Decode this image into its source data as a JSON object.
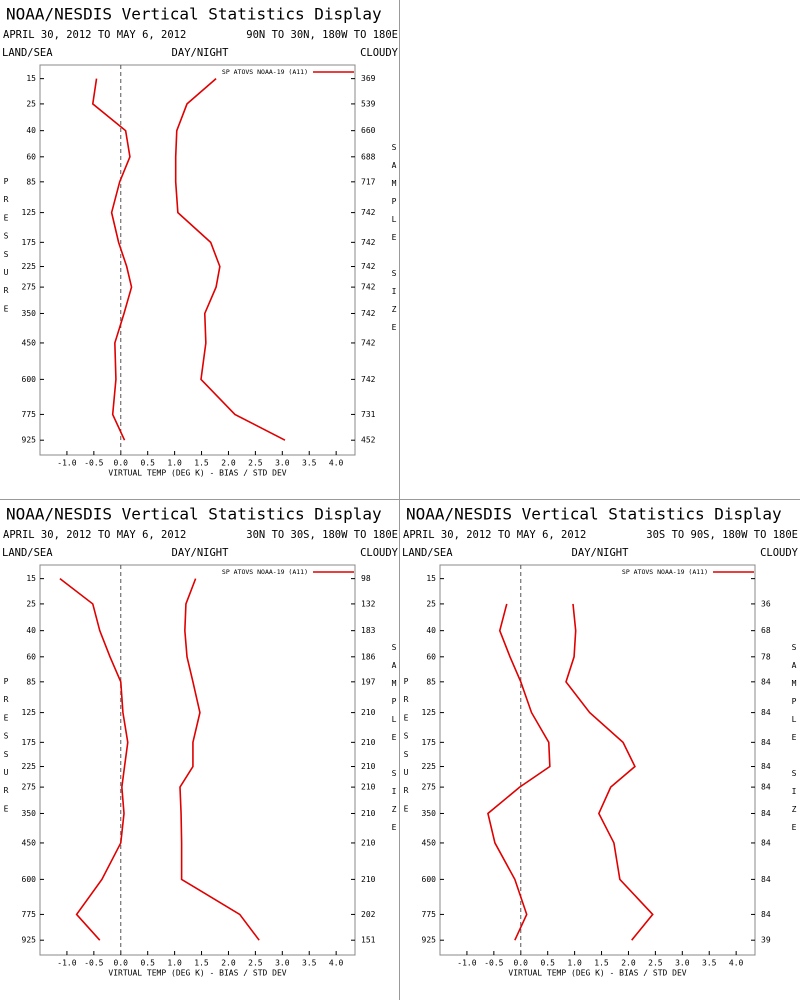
{
  "chart_data": [
    {
      "type": "line",
      "title": "NOAA/NESDIS Vertical Statistics Display",
      "subtitle": "APRIL 30, 2012 TO MAY 6, 2012",
      "region": "90N TO 30N, 180W TO 180E",
      "left_label": "LAND/SEA",
      "center_label": "DAY/NIGHT",
      "right_label": "CLOUDY",
      "xlabel": "VIRTUAL TEMP (DEG K) - BIAS / STD DEV",
      "ylabel": "PRESSURE",
      "y2label": "SAMPLE SIZE",
      "y": [
        15,
        25,
        40,
        60,
        85,
        125,
        175,
        225,
        275,
        350,
        450,
        600,
        775,
        925
      ],
      "series": [
        {
          "name": "SP ATOVS NOAA-19 (A11)",
          "color": "#e00000",
          "values": [
            -0.45,
            -0.52,
            0.09,
            0.17,
            -0.02,
            -0.17,
            -0.04,
            0.11,
            0.2,
            0.06,
            -0.11,
            -0.09,
            -0.15,
            0.07
          ],
          "std_dev": [
            1.77,
            1.23,
            1.04,
            1.02,
            1.02,
            1.06,
            1.67,
            1.84,
            1.77,
            1.56,
            1.58,
            1.49,
            2.12,
            3.05
          ]
        }
      ],
      "sample_size": [
        369,
        539,
        660,
        688,
        717,
        742,
        742,
        742,
        742,
        742,
        742,
        742,
        731,
        452
      ],
      "xlim": [
        -1.5,
        4.35
      ],
      "xticks": [
        {
          "value": -1,
          "label": "-1.0"
        },
        -0.5,
        {
          "value": 0,
          "label": "0.0"
        },
        0.5,
        {
          "value": 1,
          "label": "1.0"
        },
        1.5,
        {
          "value": 2,
          "label": "2.0"
        },
        2.5,
        {
          "value": 3,
          "label": "3.0"
        },
        3.5,
        {
          "value": 4,
          "label": "4.0"
        }
      ],
      "ylim": [
        1020,
        11
      ],
      "yticks": [
        15,
        25,
        40,
        60,
        85,
        125,
        175,
        225,
        275,
        350,
        450,
        600,
        775,
        925
      ],
      "zero_line": true,
      "legend": "upper right"
    },
    {
      "type": "line",
      "title": "NOAA/NESDIS Vertical Statistics Display",
      "subtitle": "APRIL 30, 2012 TO MAY 6, 2012",
      "region": "30N TO 30S, 180W TO 180E",
      "left_label": "LAND/SEA",
      "center_label": "DAY/NIGHT",
      "right_label": "CLOUDY",
      "xlabel": "VIRTUAL TEMP (DEG K) - BIAS / STD DEV",
      "ylabel": "PRESSURE",
      "y2label": "SAMPLE SIZE",
      "y": [
        15,
        25,
        40,
        60,
        85,
        125,
        175,
        225,
        275,
        350,
        450,
        600,
        775,
        925
      ],
      "series": [
        {
          "name": "SP ATOVS NOAA-19 (A11)",
          "color": "#e00000",
          "values": [
            -1.13,
            -0.52,
            -0.39,
            -0.2,
            0.0,
            0.04,
            0.13,
            0.07,
            0.02,
            0.06,
            0.0,
            -0.35,
            -0.82,
            -0.39
          ],
          "std_dev": [
            1.39,
            1.21,
            1.19,
            1.23,
            1.34,
            1.47,
            1.34,
            1.34,
            1.1,
            1.12,
            1.13,
            1.13,
            2.21,
            2.57
          ]
        }
      ],
      "sample_size": [
        98,
        132,
        183,
        186,
        197,
        210,
        210,
        210,
        210,
        210,
        210,
        210,
        202,
        151
      ],
      "xlim": [
        -1.5,
        4.35
      ],
      "xticks": [
        {
          "value": -1,
          "label": "-1.0"
        },
        -0.5,
        {
          "value": 0,
          "label": "0.0"
        },
        0.5,
        {
          "value": 1,
          "label": "1.0"
        },
        1.5,
        {
          "value": 2,
          "label": "2.0"
        },
        2.5,
        {
          "value": 3,
          "label": "3.0"
        },
        3.5,
        {
          "value": 4,
          "label": "4.0"
        }
      ],
      "ylim": [
        1020,
        11
      ],
      "yticks": [
        15,
        25,
        40,
        60,
        85,
        125,
        175,
        225,
        275,
        350,
        450,
        600,
        775,
        925
      ],
      "zero_line": true,
      "legend": "upper right"
    },
    {
      "type": "line",
      "title": "NOAA/NESDIS Vertical Statistics Display",
      "subtitle": "APRIL 30, 2012 TO MAY 6, 2012",
      "region": "30S TO 90S, 180W TO 180E",
      "left_label": "LAND/SEA",
      "center_label": "DAY/NIGHT",
      "right_label": "CLOUDY",
      "xlabel": "VIRTUAL TEMP (DEG K) - BIAS / STD DEV",
      "ylabel": "PRESSURE",
      "y2label": "SAMPLE SIZE",
      "y": [
        15,
        25,
        40,
        60,
        85,
        125,
        175,
        225,
        275,
        350,
        450,
        600,
        775,
        925
      ],
      "series": [
        {
          "name": "SP ATOVS NOAA-19 (A11)",
          "color": "#e00000",
          "values": [
            null,
            -0.26,
            -0.39,
            -0.2,
            0.0,
            0.2,
            0.52,
            0.54,
            -0.02,
            -0.61,
            -0.48,
            -0.11,
            0.11,
            -0.11
          ],
          "std_dev": [
            null,
            0.97,
            1.02,
            0.99,
            0.84,
            1.28,
            1.9,
            2.12,
            1.67,
            1.45,
            1.73,
            1.84,
            2.45,
            2.06
          ]
        }
      ],
      "sample_size": [
        null,
        36,
        68,
        78,
        84,
        84,
        84,
        84,
        84,
        84,
        84,
        84,
        84,
        39
      ],
      "xlim": [
        -1.5,
        4.35
      ],
      "xticks": [
        {
          "value": -1,
          "label": "-1.0"
        },
        -0.5,
        {
          "value": 0,
          "label": "0.0"
        },
        0.5,
        {
          "value": 1,
          "label": "1.0"
        },
        1.5,
        {
          "value": 2,
          "label": "2.0"
        },
        2.5,
        {
          "value": 3,
          "label": "3.0"
        },
        3.5,
        {
          "value": 4,
          "label": "4.0"
        }
      ],
      "ylim": [
        1020,
        11
      ],
      "yticks": [
        15,
        25,
        40,
        60,
        85,
        125,
        175,
        225,
        275,
        350,
        450,
        600,
        775,
        925
      ],
      "zero_line": true,
      "legend": "upper right"
    }
  ]
}
